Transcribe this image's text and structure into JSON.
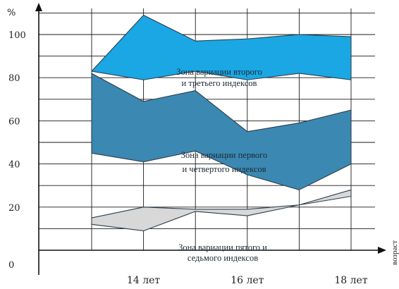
{
  "chart_data": {
    "type": "area",
    "y_unit": "%",
    "x_axis_label": "возраст",
    "ylim": [
      0,
      110
    ],
    "y_ticks": [
      "100",
      "80",
      "60",
      "40",
      "20",
      "0"
    ],
    "x_ticks": [
      "14 лет",
      "16 лет",
      "18 лет"
    ],
    "grid": true,
    "zones": [
      {
        "label": [
          "Зона вариации второго",
          "и третьего индексов"
        ],
        "color": "#1aa7e3",
        "x": [
          13,
          14,
          15,
          16,
          17,
          18
        ],
        "upper": [
          83,
          109,
          97,
          98,
          100,
          99
        ],
        "lower": [
          83,
          79,
          83,
          79,
          82,
          79
        ]
      },
      {
        "label": [
          "Зона вариации первого",
          "и четвертого индексов"
        ],
        "color": "#3b88b2",
        "x": [
          13,
          14,
          15,
          16,
          17,
          18
        ],
        "upper": [
          82,
          69,
          74,
          55,
          59,
          65
        ],
        "lower": [
          45,
          41,
          46,
          35,
          28,
          40
        ]
      },
      {
        "label": [
          "Зона вариации пятого и",
          "седьмого индексов"
        ],
        "color": "#d8d8d8",
        "x": [
          13,
          14,
          15,
          16,
          17,
          18
        ],
        "upper": [
          15,
          20,
          19,
          19,
          21,
          28
        ],
        "lower": [
          12,
          9,
          18,
          16,
          21,
          25
        ]
      }
    ]
  }
}
